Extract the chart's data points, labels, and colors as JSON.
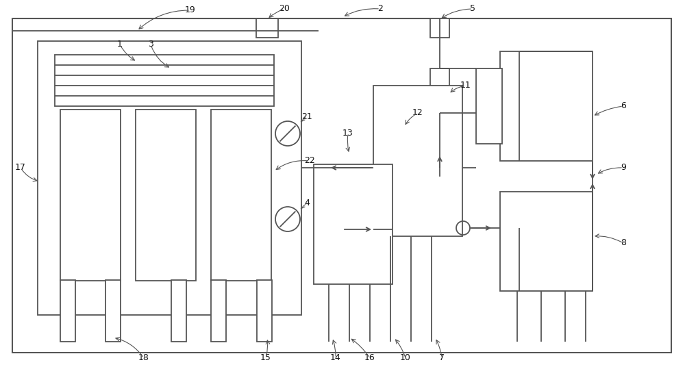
{
  "bg_color": "#ffffff",
  "line_color": "#555555",
  "lw": 1.3,
  "fig_w": 10.0,
  "fig_h": 5.55
}
